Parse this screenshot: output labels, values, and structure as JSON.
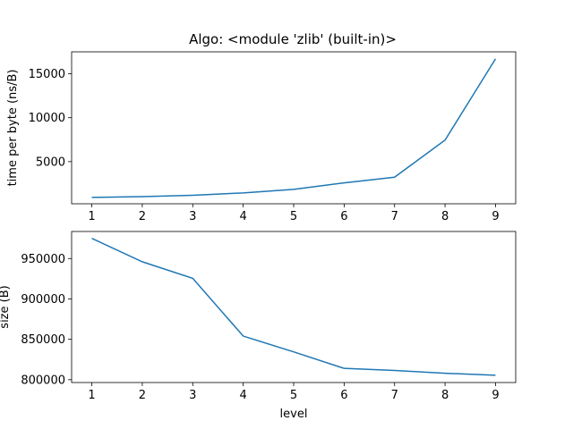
{
  "title": "Algo: <module 'zlib' (built-in)>",
  "chart_data": [
    {
      "type": "line",
      "title": "Algo: <module 'zlib' (built-in)>",
      "xlabel": "",
      "ylabel": "time per byte (ns/B)",
      "x": [
        1,
        2,
        3,
        4,
        5,
        6,
        7,
        8,
        9
      ],
      "xticks": [
        "1",
        "2",
        "3",
        "4",
        "5",
        "6",
        "7",
        "8",
        "9"
      ],
      "yticks": [
        "5000",
        "10000",
        "15000"
      ],
      "xlim": [
        0.6,
        9.4
      ],
      "ylim": [
        200,
        17500
      ],
      "grid": false,
      "color": "#1f77b4",
      "series": [
        {
          "values": [
            930,
            1010,
            1170,
            1440,
            1840,
            2580,
            3230,
            7450,
            16700
          ]
        }
      ]
    },
    {
      "type": "line",
      "title": "",
      "xlabel": "level",
      "ylabel": "size (B)",
      "x": [
        1,
        2,
        3,
        4,
        5,
        6,
        7,
        8,
        9
      ],
      "xticks": [
        "1",
        "2",
        "3",
        "4",
        "5",
        "6",
        "7",
        "8",
        "9"
      ],
      "yticks": [
        "800000",
        "850000",
        "900000",
        "950000"
      ],
      "xlim": [
        0.6,
        9.4
      ],
      "ylim": [
        796500,
        983500
      ],
      "grid": false,
      "color": "#1f77b4",
      "series": [
        {
          "values": [
            975000,
            946000,
            925500,
            854000,
            834500,
            814000,
            811500,
            808000,
            805500
          ]
        }
      ]
    }
  ]
}
